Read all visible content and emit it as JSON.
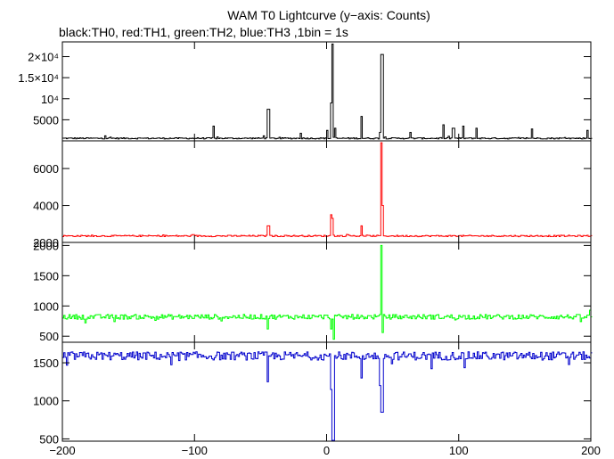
{
  "chart_data": {
    "type": "line",
    "title": "WAM T0 Lightcurve (y−axis: Counts)",
    "subtitle": "black:TH0, red:TH1, green:TH2, blue:TH3 ,1bin = 1s",
    "xlim": [
      -200,
      200
    ],
    "x_ticks": [
      -200,
      -100,
      0,
      100,
      200
    ],
    "x_tick_labels": [
      "−200",
      "−100",
      "0",
      "100",
      "200"
    ],
    "panels": [
      {
        "name": "TH0",
        "color": "#000000",
        "ylim": [
          0,
          23500
        ],
        "y_ticks": [
          5000,
          10000,
          15000,
          20000
        ],
        "y_tick_labels": [
          "5000",
          "10⁴",
          "1.5×10⁴",
          "2×10⁴"
        ],
        "baseline": 600,
        "noise": 150,
        "dip_sign": 1,
        "features": [
          {
            "x": -168,
            "value": 1200,
            "width": 1
          },
          {
            "x": -86,
            "value": 3500,
            "width": 1
          },
          {
            "x": -48,
            "value": 1200,
            "width": 1
          },
          {
            "x": -45,
            "value": 7500,
            "width": 2
          },
          {
            "x": -20,
            "value": 1800,
            "width": 1
          },
          {
            "x": 0,
            "value": 2500,
            "width": 1
          },
          {
            "x": 3,
            "value": 9000,
            "width": 2
          },
          {
            "x": 4,
            "value": 23000,
            "width": 1
          },
          {
            "x": 6,
            "value": 3000,
            "width": 1
          },
          {
            "x": 26,
            "value": 5800,
            "width": 1
          },
          {
            "x": 40,
            "value": 2000,
            "width": 1
          },
          {
            "x": 41,
            "value": 20500,
            "width": 2
          },
          {
            "x": 63,
            "value": 2000,
            "width": 1
          },
          {
            "x": 88,
            "value": 3800,
            "width": 1
          },
          {
            "x": 95,
            "value": 3000,
            "width": 2
          },
          {
            "x": 103,
            "value": 3500,
            "width": 1
          },
          {
            "x": 113,
            "value": 3000,
            "width": 1
          },
          {
            "x": 155,
            "value": 2800,
            "width": 1
          },
          {
            "x": 197,
            "value": 2500,
            "width": 1
          }
        ]
      },
      {
        "name": "TH1",
        "color": "#ff0000",
        "ylim": [
          2000,
          7500
        ],
        "y_ticks": [
          2000,
          4000,
          6000
        ],
        "y_tick_labels": [
          "2000",
          "4000",
          "6000"
        ],
        "baseline": 2350,
        "noise": 40,
        "dip_sign": 1,
        "features": [
          {
            "x": -45,
            "value": 2900,
            "width": 2
          },
          {
            "x": 3,
            "value": 3500,
            "width": 1
          },
          {
            "x": 4,
            "value": 3300,
            "width": 1
          },
          {
            "x": 26,
            "value": 2900,
            "width": 1
          },
          {
            "x": 41,
            "value": 7400,
            "width": 2
          },
          {
            "x": 42,
            "value": 4000,
            "width": 1
          }
        ]
      },
      {
        "name": "TH2",
        "color": "#00ff00",
        "ylim": [
          400,
          2050
        ],
        "y_ticks": [
          500,
          1000,
          1500,
          2000
        ],
        "y_tick_labels": [
          "500",
          "1000",
          "1500",
          "2000"
        ],
        "baseline": 820,
        "noise": 40,
        "dip_sign": -1,
        "features": [
          {
            "x": -45,
            "value": 620,
            "width": 1
          },
          {
            "x": 3,
            "value": 620,
            "width": 1
          },
          {
            "x": 5,
            "value": 450,
            "width": 1
          },
          {
            "x": 41,
            "value": 2000,
            "width": 1
          },
          {
            "x": 42,
            "value": 560,
            "width": 1
          },
          {
            "x": 199,
            "value": 930,
            "width": 1
          }
        ]
      },
      {
        "name": "TH3",
        "color": "#0000cc",
        "ylim": [
          470,
          1770
        ],
        "y_ticks": [
          500,
          1000,
          1500
        ],
        "y_tick_labels": [
          "500",
          "1000",
          "1500"
        ],
        "baseline": 1590,
        "noise": 55,
        "dip_sign": -1,
        "features": [
          {
            "x": -45,
            "value": 1250,
            "width": 1
          },
          {
            "x": 3,
            "value": 1150,
            "width": 1
          },
          {
            "x": 4,
            "value": 480,
            "width": 2
          },
          {
            "x": 26,
            "value": 1300,
            "width": 1
          },
          {
            "x": 40,
            "value": 1200,
            "width": 1
          },
          {
            "x": 41,
            "value": 850,
            "width": 2
          }
        ]
      }
    ]
  }
}
